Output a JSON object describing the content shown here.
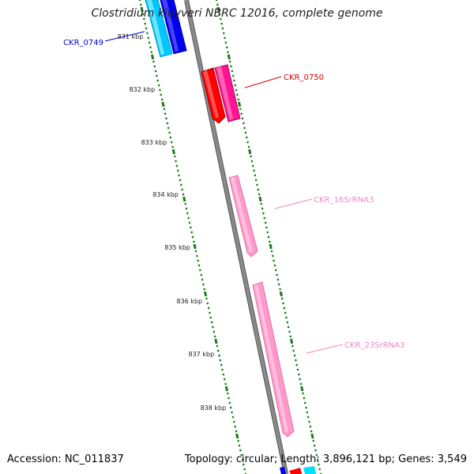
{
  "title": "Clostridium kluyveri NBRC 12016, complete genome",
  "footer": {
    "accession": "Accession: NC_011837",
    "summary": "Topology: circular; Length: 3,896,121 bp; Genes: 3,549"
  },
  "ticks": [
    {
      "label": "831 kbp"
    },
    {
      "label": "832 kbp"
    },
    {
      "label": "833 kbp"
    },
    {
      "label": "834 kbp"
    },
    {
      "label": "835 kbp"
    },
    {
      "label": "836 kbp"
    },
    {
      "label": "837 kbp"
    },
    {
      "label": "838 kbp"
    }
  ],
  "features": [
    {
      "name": "CKR_0749",
      "color": "#0000cc"
    },
    {
      "name": "CKR_0750",
      "color": "#dd0000"
    },
    {
      "name": "CKR_16SrRNA3",
      "color": "#ee88bb"
    },
    {
      "name": "CKR_23SrRNA3",
      "color": "#ee88bb"
    }
  ],
  "colors": {
    "backbone": "#888888",
    "tick": "#1a7a1a",
    "gene_red": "#ff0000",
    "gene_magenta": "#ff1493",
    "gene_blue": "#0000ff",
    "gene_cyan": "#00ccff",
    "rrna_pink": "#ff99cc"
  }
}
